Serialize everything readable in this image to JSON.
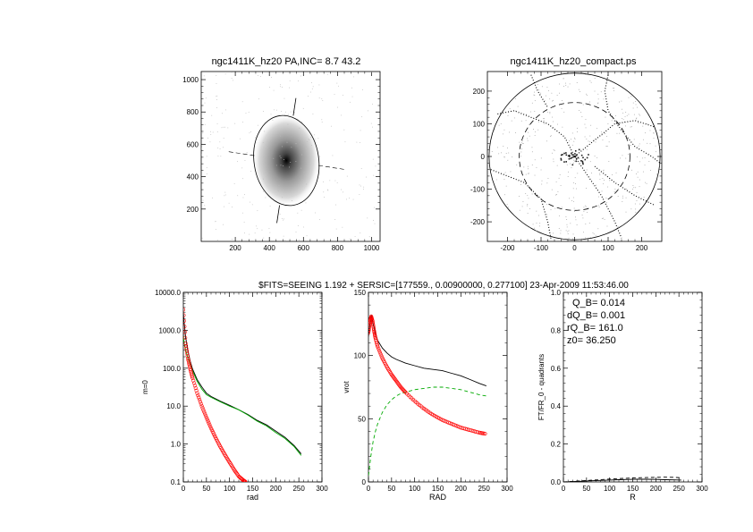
{
  "figure": {
    "caption": "$FITS=SEEING 1.192 + SERSIC=[177559., 0.00900000, 0.277100]  23-Apr-2009 11:53:46.00"
  },
  "chart_data": [
    {
      "type": "scatter",
      "title": "ngc1411K_hz20 PA,INC=  8.7 43.2",
      "xlim": [
        0,
        1050
      ],
      "ylim": [
        0,
        1050
      ],
      "xticks": [
        200,
        400,
        600,
        800,
        1000
      ],
      "yticks": [
        200,
        400,
        600,
        800,
        1000
      ],
      "xticklabels": [
        "200",
        "400",
        "600",
        "800",
        "1000"
      ],
      "yticklabels": [
        "200",
        "400",
        "600",
        "800",
        "1000"
      ],
      "image_center": [
        500,
        500
      ],
      "ellipse": {
        "cx": 500,
        "cy": 500,
        "semi_major": 280,
        "semi_minor": 190,
        "pa_deg": 8.7
      }
    },
    {
      "type": "scatter",
      "title": "ngc1411K_hz20_compact.ps",
      "xlim": [
        -260,
        260
      ],
      "ylim": [
        -260,
        260
      ],
      "xticks": [
        -200,
        -100,
        0,
        100,
        200
      ],
      "yticks": [
        -200,
        -100,
        0,
        100,
        200
      ],
      "xticklabels": [
        "-200",
        "-100",
        "0",
        "100",
        "200"
      ],
      "yticklabels": [
        "-200",
        "-100",
        "0",
        "100",
        "200"
      ],
      "outer_circle_radius": 255,
      "dashed_circle_radius": 165
    },
    {
      "type": "line",
      "xlabel": "rad",
      "ylabel": "m=0",
      "xlim": [
        0,
        300
      ],
      "ylim": [
        0.1,
        10000
      ],
      "yscale": "log",
      "xticks": [
        0,
        50,
        100,
        150,
        200,
        250,
        300
      ],
      "xticklabels": [
        "0",
        "50",
        "100",
        "150",
        "200",
        "250",
        "300"
      ],
      "yticks": [
        0.1,
        1,
        10,
        100,
        1000,
        10000
      ],
      "yticklabels": [
        "0.1",
        "1.0",
        "10.0",
        "100.0",
        "1000.0",
        "10000.0"
      ],
      "series": [
        {
          "color": "#000000",
          "style": "solid",
          "x": [
            0,
            2,
            5,
            10,
            15,
            20,
            30,
            40,
            50,
            60,
            80,
            100,
            120,
            140,
            160,
            180,
            200,
            220,
            240,
            255
          ],
          "y": [
            3000,
            1500,
            650,
            280,
            150,
            95,
            50,
            32,
            22,
            18,
            13.5,
            10.5,
            8,
            6,
            4.2,
            3.2,
            2.2,
            1.5,
            0.9,
            0.55
          ]
        },
        {
          "color": "#00aa00",
          "style": "solid",
          "x": [
            0,
            2,
            5,
            10,
            15,
            20,
            30,
            40,
            50,
            60,
            80,
            100,
            120,
            140,
            160,
            180,
            200,
            220,
            240,
            255
          ],
          "y": [
            700,
            450,
            300,
            180,
            120,
            85,
            45,
            28,
            20,
            17,
            13,
            10,
            8,
            5.8,
            4,
            3,
            2,
            1.4,
            0.85,
            0.5
          ]
        },
        {
          "color": "#ff0000",
          "style": "symbols",
          "x": [
            0,
            5,
            10,
            15,
            20,
            30,
            40,
            50,
            60,
            70,
            80,
            90,
            100,
            110,
            120,
            130,
            135
          ],
          "y": [
            3500,
            450,
            180,
            95,
            55,
            22,
            10,
            5,
            2.6,
            1.45,
            0.85,
            0.52,
            0.33,
            0.21,
            0.14,
            0.11,
            0.1
          ]
        }
      ]
    },
    {
      "type": "line",
      "xlabel": "RAD",
      "ylabel": "vrot",
      "xlim": [
        0,
        300
      ],
      "ylim": [
        0,
        150
      ],
      "xticks": [
        0,
        50,
        100,
        150,
        200,
        250,
        300
      ],
      "xticklabels": [
        "0",
        "50",
        "100",
        "150",
        "200",
        "250",
        "300"
      ],
      "yticks": [
        0,
        50,
        100,
        150
      ],
      "yticklabels": [
        "0",
        "50",
        "100",
        "150"
      ],
      "series": [
        {
          "color": "#000000",
          "style": "solid",
          "x": [
            0,
            3,
            6,
            10,
            15,
            20,
            30,
            40,
            50,
            60,
            80,
            100,
            120,
            140,
            160,
            180,
            200,
            220,
            240,
            255
          ],
          "y": [
            115,
            125,
            132,
            125,
            118,
            112,
            106,
            102,
            99,
            97,
            94,
            92,
            90,
            89,
            88,
            86,
            84,
            81,
            78,
            76
          ]
        },
        {
          "color": "#00aa00",
          "style": "dashed",
          "x": [
            0,
            5,
            10,
            15,
            20,
            30,
            40,
            50,
            60,
            70,
            80,
            100,
            120,
            140,
            160,
            180,
            200,
            220,
            240,
            255
          ],
          "y": [
            5,
            20,
            32,
            40,
            46,
            55,
            61,
            65,
            68,
            70,
            71,
            73,
            74,
            75,
            75,
            74,
            73,
            71,
            69,
            68
          ]
        },
        {
          "color": "#ff0000",
          "style": "symbols",
          "x": [
            0,
            3,
            6,
            9,
            12,
            15,
            20,
            30,
            40,
            50,
            60,
            70,
            80,
            100,
            120,
            140,
            160,
            180,
            200,
            220,
            240,
            255
          ],
          "y": [
            118,
            126,
            131,
            127,
            120,
            114,
            107,
            98,
            91,
            85,
            80,
            75,
            71,
            64,
            58,
            53,
            49,
            46,
            43,
            41,
            39,
            38
          ]
        }
      ]
    },
    {
      "type": "line",
      "xlabel": "R",
      "ylabel": "FT/FR_0 - quadrants",
      "xlim": [
        0,
        300
      ],
      "ylim": [
        0,
        1.0
      ],
      "xticks": [
        0,
        50,
        100,
        150,
        200,
        250,
        300
      ],
      "xticklabels": [
        "0",
        "50",
        "100",
        "150",
        "200",
        "250",
        "300"
      ],
      "yticks": [
        0,
        0.2,
        0.4,
        0.6,
        0.8,
        1.0
      ],
      "yticklabels": [
        "0.0",
        "0.2",
        "0.4",
        "0.6",
        "0.8",
        "1.0"
      ],
      "annotations": [
        "Q_B=  0.014",
        "dQ_B=  0.001",
        "rQ_B=  161.0",
        "z0= 36.250"
      ],
      "series": [
        {
          "color": "#000000",
          "style": "solid",
          "x": [
            0,
            20,
            40,
            60,
            80,
            100,
            120,
            140,
            160,
            180,
            200,
            220,
            240,
            255
          ],
          "y": [
            0.0,
            0.002,
            0.004,
            0.006,
            0.008,
            0.01,
            0.012,
            0.013,
            0.014,
            0.014,
            0.013,
            0.012,
            0.011,
            0.01
          ]
        },
        {
          "color": "#000000",
          "style": "dashed",
          "x": [
            0,
            20,
            40,
            60,
            80,
            100,
            120,
            140,
            160,
            180,
            200,
            220,
            240,
            255
          ],
          "y": [
            0.0,
            0.003,
            0.006,
            0.009,
            0.012,
            0.015,
            0.018,
            0.02,
            0.022,
            0.023,
            0.024,
            0.025,
            0.024,
            0.022
          ]
        }
      ]
    }
  ]
}
